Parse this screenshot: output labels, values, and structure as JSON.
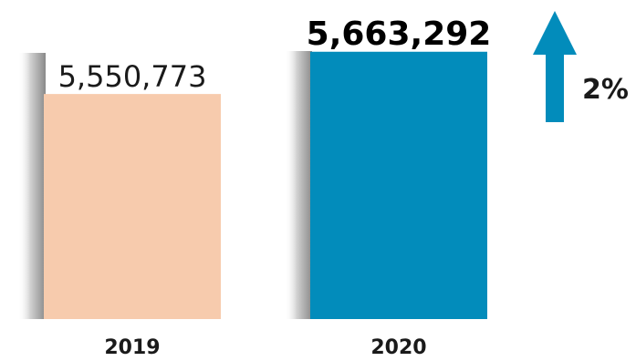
{
  "chart_data": {
    "type": "bar",
    "categories": [
      "2019",
      "2020"
    ],
    "values": [
      5550773,
      5663292
    ],
    "value_labels": [
      "5,550,773",
      "5,663,292"
    ],
    "colors": [
      "#f7cbad",
      "#028cbb"
    ],
    "arrow_color": "#028cbb",
    "change_direction": "up",
    "change_label": "2%",
    "grid": false,
    "legend": "none"
  }
}
